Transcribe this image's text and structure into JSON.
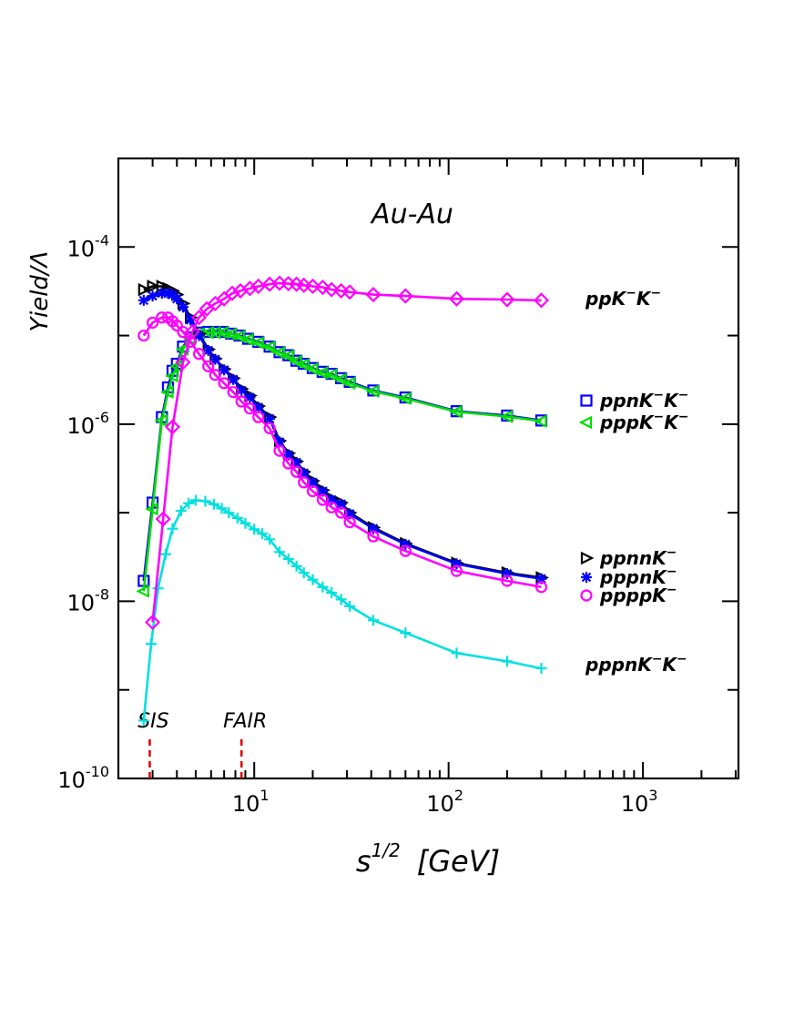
{
  "chart_data": {
    "type": "line",
    "title": "Au-Au",
    "xlabel": "s^{1/2} [GeV]",
    "xlabel_base": "s",
    "xlabel_exp": "1/2",
    "xlabel_unit": "[GeV]",
    "ylabel": "Yield/Λ",
    "x_scale": "log",
    "y_scale": "log",
    "xlim": [
      2.0,
      3100
    ],
    "ylim": [
      1e-10,
      0.001
    ],
    "x_ticks": [
      {
        "value": 10,
        "base": "10",
        "exp": "1"
      },
      {
        "value": 100,
        "base": "10",
        "exp": "2"
      },
      {
        "value": 1000,
        "base": "10",
        "exp": "3"
      }
    ],
    "y_ticks": [
      {
        "value": 0.0001,
        "base": "10",
        "exp": "-4"
      },
      {
        "value": 1e-06,
        "base": "10",
        "exp": "-6"
      },
      {
        "value": 1e-08,
        "base": "10",
        "exp": "-8"
      },
      {
        "value": 1e-10,
        "base": "10",
        "exp": "-10"
      }
    ],
    "grid": false,
    "markers_vertical": [
      {
        "label": "SIS",
        "x": 2.9,
        "color": "#e00000"
      },
      {
        "label": "FAIR",
        "x": 8.6,
        "color": "#e00000"
      }
    ],
    "series": [
      {
        "name": "ppK⁻K⁻",
        "name_base": "ppK",
        "name_sup1": "−",
        "name_mid": "K",
        "name_sup2": "−",
        "color": "#ff00ff",
        "marker": "diamond",
        "x": [
          3.0,
          3.4,
          3.8,
          4.3,
          4.8,
          5.2,
          5.7,
          6.3,
          7.0,
          7.7,
          8.5,
          9.5,
          10.5,
          12,
          13.5,
          15,
          16.5,
          18,
          20,
          22.5,
          25,
          28,
          31,
          41,
          60,
          110,
          200,
          300
        ],
        "y": [
          5.8e-09,
          8.5e-08,
          9.3e-07,
          5e-06,
          1.1e-05,
          1.6e-05,
          2e-05,
          2.3e-05,
          2.6e-05,
          3e-05,
          3.2e-05,
          3.4e-05,
          3.6e-05,
          3.8e-05,
          3.9e-05,
          3.85e-05,
          3.8e-05,
          3.7e-05,
          3.6e-05,
          3.5e-05,
          3.3e-05,
          3.2e-05,
          3.1e-05,
          2.9e-05,
          2.8e-05,
          2.6e-05,
          2.55e-05,
          2.5e-05
        ]
      },
      {
        "name": "ppnK⁻K⁻",
        "name_base": "ppnK",
        "name_sup1": "−",
        "name_mid": "K",
        "name_sup2": "−",
        "color": "#0000ff",
        "marker": "square",
        "x": [
          2.7,
          3.0,
          3.35,
          3.6,
          3.8,
          4.0,
          4.3,
          4.7,
          5.2,
          5.8,
          6.3,
          6.9,
          7.6,
          8.4,
          9.3,
          10.5,
          12,
          13.5,
          15,
          16.5,
          18,
          20,
          22.5,
          25,
          28,
          31,
          41,
          60,
          110,
          200,
          300
        ],
        "y": [
          1.7e-08,
          1.3e-07,
          1.2e-06,
          2.6e-06,
          4e-06,
          4.8e-06,
          7.5e-06,
          9.5e-06,
          1.08e-05,
          1.1e-05,
          1.1e-05,
          1.1e-05,
          1.05e-05,
          1e-05,
          9.2e-06,
          8.5e-06,
          7.5e-06,
          6.5e-06,
          6e-06,
          5.2e-06,
          4.8e-06,
          4.3e-06,
          3.9e-06,
          3.7e-06,
          3.3e-06,
          3e-06,
          2.4e-06,
          2e-06,
          1.4e-06,
          1.25e-06,
          1.1e-06
        ]
      },
      {
        "name": "pppK⁻K⁻",
        "name_base": "pppK",
        "name_sup1": "−",
        "name_mid": "K",
        "name_sup2": "−",
        "color": "#00dd00",
        "marker": "triangle-left",
        "x": [
          2.7,
          3.0,
          3.35,
          3.6,
          3.8,
          4.0,
          4.3,
          4.7,
          5.2,
          5.8,
          6.3,
          6.9,
          7.6,
          8.4,
          9.3,
          10.5,
          12,
          13.5,
          15,
          16.5,
          18,
          20,
          22.5,
          25,
          28,
          31,
          41,
          60,
          110,
          200,
          300
        ],
        "y": [
          1.3e-08,
          1.1e-07,
          1.1e-06,
          2.3e-06,
          3.5e-06,
          4.5e-06,
          7e-06,
          9.2e-06,
          1.05e-05,
          1.08e-05,
          1.08e-05,
          1.08e-05,
          1.04e-05,
          9.8e-06,
          9e-06,
          8.3e-06,
          7.4e-06,
          6.4e-06,
          5.9e-06,
          5.1e-06,
          4.7e-06,
          4.2e-06,
          3.8e-06,
          3.6e-06,
          3.2e-06,
          2.9e-06,
          2.35e-06,
          1.95e-06,
          1.38e-06,
          1.22e-06,
          1.08e-06
        ]
      },
      {
        "name": "ppnnK⁻",
        "name_base": "ppnnK",
        "name_sup1": "−",
        "name_mid": "",
        "name_sup2": "",
        "color": "#000000",
        "marker": "triangle-right",
        "x": [
          2.7,
          3.0,
          3.35,
          3.6,
          3.8,
          4.0,
          4.3,
          4.7,
          5.2,
          5.8,
          6.3,
          7.0,
          7.8,
          8.6,
          9.5,
          10.5,
          12,
          13.5,
          15,
          16.5,
          18,
          20,
          22.5,
          25,
          28,
          31,
          41,
          60,
          110,
          200,
          300
        ],
        "y": [
          3.3e-05,
          3.6e-05,
          3.6e-05,
          3.4e-05,
          3.2e-05,
          2.9e-05,
          2.3e-05,
          1.6e-05,
          1.05e-05,
          7e-06,
          5.5e-06,
          4.2e-06,
          3.3e-06,
          2.5e-06,
          2.1e-06,
          1.6e-06,
          1.2e-06,
          6.5e-07,
          4.7e-07,
          3.8e-07,
          2.9e-07,
          2.3e-07,
          1.8e-07,
          1.45e-07,
          1.3e-07,
          1e-07,
          6.8e-08,
          4.5e-08,
          2.7e-08,
          2.1e-08,
          1.85e-08
        ]
      },
      {
        "name": "pppnK⁻",
        "name_base": "pppnK",
        "name_sup1": "−",
        "name_mid": "",
        "name_sup2": "",
        "color": "#0000ff",
        "marker": "asterisk",
        "x": [
          2.7,
          3.0,
          3.35,
          3.6,
          3.8,
          4.0,
          4.3,
          4.7,
          5.2,
          5.8,
          6.3,
          7.0,
          7.8,
          8.6,
          9.5,
          10.5,
          12,
          13.5,
          15,
          16.5,
          18,
          20,
          22.5,
          25,
          28,
          31,
          41,
          60,
          110,
          200,
          300
        ],
        "y": [
          2.5e-05,
          2.8e-05,
          3e-05,
          3e-05,
          2.9e-05,
          2.6e-05,
          2.1e-05,
          1.5e-05,
          1e-05,
          6.8e-06,
          5.4e-06,
          4.1e-06,
          3.2e-06,
          2.4e-06,
          2e-06,
          1.55e-06,
          1.15e-06,
          6.3e-07,
          4.5e-07,
          3.7e-07,
          2.8e-07,
          2.2e-07,
          1.75e-07,
          1.4e-07,
          1.25e-07,
          9.7e-08,
          6.6e-08,
          4.4e-08,
          2.65e-08,
          2.05e-08,
          1.8e-08
        ]
      },
      {
        "name": "ppppK⁻",
        "name_base": "ppppK",
        "name_sup1": "−",
        "name_mid": "",
        "name_sup2": "",
        "color": "#ff00ff",
        "marker": "circle",
        "x": [
          2.7,
          3.0,
          3.35,
          3.6,
          3.8,
          4.0,
          4.3,
          4.7,
          5.2,
          5.8,
          6.3,
          7.0,
          7.8,
          8.6,
          9.5,
          10.5,
          12,
          13.5,
          15,
          16.5,
          18,
          20,
          22.5,
          25,
          28,
          31,
          41,
          60,
          110,
          200,
          300
        ],
        "y": [
          1e-05,
          1.4e-05,
          1.6e-05,
          1.6e-05,
          1.45e-05,
          1.3e-05,
          1.1e-05,
          8.5e-06,
          6.2e-06,
          4.5e-06,
          3.6e-06,
          2.9e-06,
          2.3e-06,
          1.8e-06,
          1.5e-06,
          1.2e-06,
          9e-07,
          5e-07,
          3.6e-07,
          2.9e-07,
          2.2e-07,
          1.75e-07,
          1.4e-07,
          1.15e-07,
          1e-07,
          7.8e-08,
          5.4e-08,
          3.7e-08,
          2.2e-08,
          1.7e-08,
          1.45e-08
        ]
      },
      {
        "name": "pppnK⁻K⁻",
        "name_base": "pppnK",
        "name_sup1": "−",
        "name_mid": "K",
        "name_sup2": "−",
        "color": "#00e0e0",
        "marker": "plus",
        "x": [
          2.7,
          2.95,
          3.2,
          3.5,
          3.8,
          4.2,
          4.6,
          5.0,
          5.6,
          6.2,
          6.8,
          7.4,
          8.2,
          9.0,
          10,
          11,
          12,
          13.5,
          15,
          16.5,
          18,
          20,
          22.5,
          25,
          28,
          31,
          41,
          60,
          110,
          200,
          300
        ],
        "y": [
          4.5e-10,
          3.3e-09,
          1.4e-08,
          3.4e-08,
          6.6e-08,
          1.05e-07,
          1.28e-07,
          1.38e-07,
          1.35e-07,
          1.25e-07,
          1.12e-07,
          1e-07,
          8.7e-08,
          7.6e-08,
          6.5e-08,
          5.8e-08,
          5e-08,
          3.6e-08,
          3e-08,
          2.5e-08,
          2.1e-08,
          1.75e-08,
          1.45e-08,
          1.25e-08,
          1.05e-08,
          8.8e-09,
          6.1e-09,
          4.4e-09,
          2.6e-09,
          2.1e-09,
          1.75e-09
        ]
      }
    ]
  }
}
